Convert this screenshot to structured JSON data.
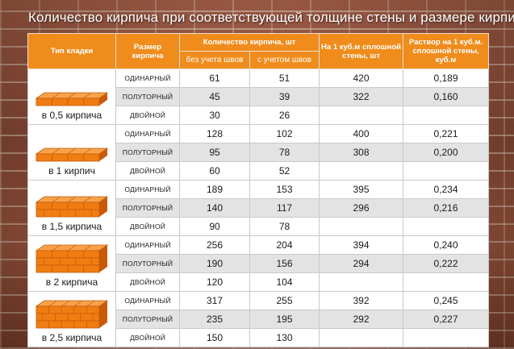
{
  "title": "Количество кирпича при соответствующей толщине стены и размере кирпича:",
  "headers": {
    "type": "Тип кладки",
    "size": "Размер кирпича",
    "count": "Количество кирпича, шт",
    "count_without": "без учета швов",
    "count_with": "с учетом швов",
    "per_m3": "На 1 куб.м сплошной стены, шт",
    "mortar": "Раствор на 1 куб.м. сплошной стены, куб.м"
  },
  "groups": [
    {
      "label": "в 0,5 кирпича",
      "icon": "brick-wall-half-icon",
      "rows": [
        {
          "size": "ОДИНАРНЫЙ",
          "without": "61",
          "with": "51",
          "per_m3": "420",
          "mortar": "0,189"
        },
        {
          "size": "ПОЛУТОРНЫЙ",
          "without": "45",
          "with": "39",
          "per_m3": "322",
          "mortar": "0,160"
        },
        {
          "size": "ДВОЙНОЙ",
          "without": "30",
          "with": "26",
          "per_m3": "",
          "mortar": ""
        }
      ]
    },
    {
      "label": "в 1 кирпич",
      "icon": "brick-wall-one-icon",
      "rows": [
        {
          "size": "ОДИНАРНЫЙ",
          "without": "128",
          "with": "102",
          "per_m3": "400",
          "mortar": "0,221"
        },
        {
          "size": "ПОЛУТОРНЫЙ",
          "without": "95",
          "with": "78",
          "per_m3": "308",
          "mortar": "0,200"
        },
        {
          "size": "ДВОЙНОЙ",
          "without": "60",
          "with": "52",
          "per_m3": "",
          "mortar": ""
        }
      ]
    },
    {
      "label": "в 1,5 кирпича",
      "icon": "brick-wall-one-half-icon",
      "rows": [
        {
          "size": "ОДИНАРНЫЙ",
          "without": "189",
          "with": "153",
          "per_m3": "395",
          "mortar": "0,234"
        },
        {
          "size": "ПОЛУТОРНЫЙ",
          "without": "140",
          "with": "117",
          "per_m3": "296",
          "mortar": "0,216"
        },
        {
          "size": "ДВОЙНОЙ",
          "without": "90",
          "with": "78",
          "per_m3": "",
          "mortar": ""
        }
      ]
    },
    {
      "label": "в 2 кирпича",
      "icon": "brick-wall-two-icon",
      "rows": [
        {
          "size": "ОДИНАРНЫЙ",
          "without": "256",
          "with": "204",
          "per_m3": "394",
          "mortar": "0,240"
        },
        {
          "size": "ПОЛУТОРНЫЙ",
          "without": "190",
          "with": "156",
          "per_m3": "294",
          "mortar": "0,222"
        },
        {
          "size": "ДВОЙНОЙ",
          "without": "120",
          "with": "104",
          "per_m3": "",
          "mortar": ""
        }
      ]
    },
    {
      "label": "в 2,5 кирпича",
      "icon": "brick-wall-two-half-icon",
      "rows": [
        {
          "size": "ОДИНАРНЫЙ",
          "without": "317",
          "with": "255",
          "per_m3": "392",
          "mortar": "0,245"
        },
        {
          "size": "ПОЛУТОРНЫЙ",
          "without": "235",
          "with": "195",
          "per_m3": "292",
          "mortar": "0,227"
        },
        {
          "size": "ДВОЙНОЙ",
          "without": "150",
          "with": "130",
          "per_m3": "",
          "mortar": ""
        }
      ]
    }
  ],
  "colors": {
    "header": "#f08c1c",
    "brick": "#f07d12",
    "brick_dark": "#c85a08",
    "row_gray": "#e3e3e3"
  }
}
